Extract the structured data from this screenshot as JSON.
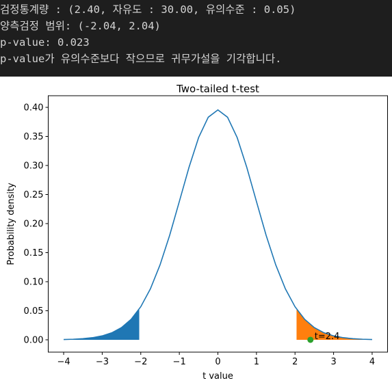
{
  "console": {
    "lines": [
      "검정통계량 : (2.40, 자유도 : 30.00, 유의수준 : 0.05)",
      "양측검정 범위: (-2.04, 2.04)",
      "p-value: 0.023",
      "p-value가 유의수준보다 작으므로 귀무가설을 기각합니다."
    ]
  },
  "chart_data": {
    "type": "line",
    "title": "Two-tailed t-test",
    "x_label": "t value",
    "y_label": "Probability density",
    "series": [
      {
        "color": "#1f77b4",
        "x": [
          -4,
          -3.75,
          -3.5,
          -3.25,
          -3,
          -2.75,
          -2.5,
          -2.25,
          -2,
          -1.75,
          -1.5,
          -1.25,
          -1,
          -0.75,
          -0.5,
          -0.25,
          0,
          0.25,
          0.5,
          0.75,
          1,
          1.25,
          1.5,
          1.75,
          2,
          2.25,
          2.5,
          2.75,
          3,
          3.25,
          3.5,
          3.75,
          4
        ],
        "values": [
          0.00053,
          0.00102,
          0.00196,
          0.00368,
          0.00678,
          0.0121,
          0.0211,
          0.0353,
          0.0569,
          0.0877,
          0.129,
          0.18,
          0.238,
          0.2966,
          0.348,
          0.383,
          0.3956,
          0.383,
          0.348,
          0.2966,
          0.238,
          0.18,
          0.129,
          0.0877,
          0.0569,
          0.0353,
          0.0211,
          0.0121,
          0.00678,
          0.00368,
          0.00196,
          0.00102,
          0.00053
        ]
      }
    ],
    "areas": [
      {
        "color": "#1f77b4",
        "x": [
          -4,
          -3.75,
          -3.5,
          -3.25,
          -3,
          -2.75,
          -2.5,
          -2.25,
          -2.04
        ],
        "values": [
          0.00053,
          0.00102,
          0.00196,
          0.00368,
          0.00678,
          0.0121,
          0.0211,
          0.0353,
          0.0528
        ]
      },
      {
        "color": "#ff7f0e",
        "x": [
          2.04,
          2.25,
          2.5,
          2.75,
          3,
          3.25,
          3.5,
          3.75,
          4
        ],
        "values": [
          0.0528,
          0.0353,
          0.0211,
          0.0121,
          0.00678,
          0.00368,
          0.00196,
          0.00102,
          0.00053
        ]
      }
    ],
    "points": [
      {
        "x": 2.4,
        "y": 0,
        "color": "#2ca02c",
        "label": "t=2.4"
      }
    ],
    "xlim": [
      -4.4,
      4.4
    ],
    "xticks": [
      {
        "value": -4,
        "label": "−4"
      },
      {
        "value": -3,
        "label": "−3"
      },
      {
        "value": -2,
        "label": "−2"
      },
      {
        "value": -1,
        "label": "−1"
      },
      0,
      1,
      2,
      3,
      4
    ],
    "ylim": [
      -0.0212,
      0.42
    ],
    "yticks": [
      {
        "value": 0,
        "label": "0.00"
      },
      {
        "value": 0.05,
        "label": "0.05"
      },
      {
        "value": 0.1,
        "label": "0.10"
      },
      {
        "value": 0.15,
        "label": "0.15"
      },
      {
        "value": 0.2,
        "label": "0.20"
      },
      {
        "value": 0.25,
        "label": "0.25"
      },
      {
        "value": 0.3,
        "label": "0.30"
      },
      {
        "value": 0.35,
        "label": "0.35"
      },
      {
        "value": 0.4,
        "label": "0.40"
      }
    ]
  }
}
